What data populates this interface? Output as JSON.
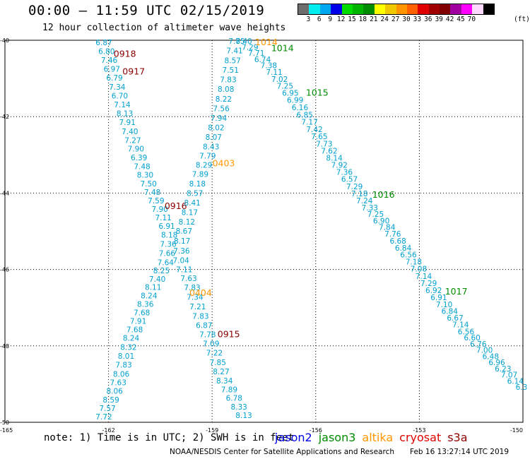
{
  "header": {
    "title": "00:00 – 11:59 UTC 02/15/2019",
    "subtitle": "12 hour collection of altimeter wave heights"
  },
  "legend": {
    "unit": "(ft)",
    "ticks": [
      "3",
      "6",
      "9",
      "12",
      "15",
      "18",
      "21",
      "24",
      "27",
      "30",
      "33",
      "36",
      "39",
      "42",
      "45",
      "70"
    ],
    "colors": [
      "#6e6e6e",
      "#00eeee",
      "#00a8f0",
      "#0000e8",
      "#00dc00",
      "#00b400",
      "#008c00",
      "#ffff00",
      "#f0c800",
      "#ff9600",
      "#ff6000",
      "#e00000",
      "#a00000",
      "#800000",
      "#a000a0",
      "#ff00ff",
      "#ffd8ff",
      "#000000"
    ]
  },
  "map": {
    "x_ticks": [
      "-165",
      "-162",
      "-159",
      "-156",
      "-153",
      "-150"
    ],
    "y_ticks": [
      "-40",
      "-42",
      "-44",
      "-46",
      "-48",
      "-50"
    ],
    "value_color": "#00a0d0",
    "time_colors": {
      "red": "#8b0000",
      "orange": "#ff9600",
      "green": "#008c00"
    },
    "tracks": [
      {
        "id": "A",
        "values": [
          "6.87",
          "6.80",
          "7.46",
          "6.97",
          "6.79",
          "7.34",
          "6.70",
          "7.14",
          "8.13",
          "7.91",
          "7.40",
          "7.27",
          "7.90",
          "6.39",
          "7.48",
          "8.30",
          "7.50",
          "7.48",
          "7.59",
          "7.90",
          "7.11",
          "6.91",
          "8.18",
          "7.36",
          "7.66",
          "7.64",
          "8.25",
          "7.40",
          "8.11",
          "8.24",
          "8.36",
          "7.68",
          "7.91",
          "7.68",
          "8.24",
          "8.32",
          "8.01",
          "7.83",
          "8.06",
          "7.63",
          "8.06",
          "8.59",
          "7.57",
          "7.72"
        ],
        "labels": [
          {
            "text": "0918",
            "color": "red",
            "at": 1
          },
          {
            "text": "0917",
            "color": "red",
            "at": 3
          },
          {
            "text": "0916",
            "color": "red",
            "at": 18
          }
        ]
      },
      {
        "id": "B",
        "values": [
          "7.85",
          "7.41",
          "8.57",
          "7.51",
          "7.83",
          "8.08",
          "8.22",
          "7.56",
          "7.94",
          "8.02",
          "8.07",
          "8.43",
          "7.79",
          "8.29",
          "7.89",
          "8.18",
          "8.57",
          "8.41",
          "8.17",
          "8.12",
          "8.67",
          "8.17",
          "7.36",
          "7.04",
          "7.11",
          "7.63",
          "7.83",
          "7.34",
          "7.21",
          "7.83",
          "6.87",
          "7.78",
          "7.09",
          "7.22",
          "7.85",
          "8.27",
          "8.34",
          "7.89",
          "6.78",
          "8.33",
          "8.13"
        ],
        "labels": [
          {
            "text": "0403",
            "color": "orange",
            "at": 13
          },
          {
            "text": "0404",
            "color": "orange",
            "at": 26
          },
          {
            "text": "0915",
            "color": "red",
            "at": 31
          }
        ]
      },
      {
        "id": "C",
        "values": [
          "7.40",
          "7.29",
          "7.71",
          "6.74",
          "7.38",
          "7.11",
          "7.02",
          "7.25",
          "6.95",
          "6.99",
          "6.16",
          "6.85",
          "7.17",
          "7.42",
          "7.65",
          "7.73",
          "7.62",
          "8.14",
          "7.92",
          "7.36",
          "6.57",
          "7.29",
          "7.18",
          "7.24",
          "7.33",
          "7.25",
          "6.90",
          "7.84",
          "7.76",
          "6.68",
          "6.84",
          "6.56",
          "7.18",
          "7.08",
          "7.14",
          "7.29",
          "6.92",
          "6.91",
          "7.10",
          "6.84",
          "6.67",
          "7.14",
          "6.56",
          "6.60",
          "6.76",
          "7.00",
          "6.48",
          "6.96",
          "6.23",
          "7.07",
          "6.14",
          "6.3"
        ],
        "labels": [
          {
            "text": "1014",
            "color": "orange",
            "at": 0
          },
          {
            "text": "1014",
            "color": "green",
            "at": 1
          },
          {
            "text": "1015",
            "color": "green",
            "at": 8
          },
          {
            "text": "1016",
            "color": "green",
            "at": 22
          },
          {
            "text": "1017",
            "color": "green",
            "at": 36
          }
        ]
      }
    ]
  },
  "footer": {
    "note": "note: 1) Time is in UTC; 2) SWH is in feet",
    "satellites": [
      {
        "name": "jason2",
        "color": "#0000e8"
      },
      {
        "name": "jason3",
        "color": "#008c00"
      },
      {
        "name": "altika",
        "color": "#ff9600"
      },
      {
        "name": "cryosat",
        "color": "#e00000"
      },
      {
        "name": "s3a",
        "color": "#8b0000"
      }
    ],
    "credit": "NOAA/NESDIS Center for Satellite Applications and Research",
    "timestamp": "Feb 16 13:27:14 UTC 2019"
  }
}
